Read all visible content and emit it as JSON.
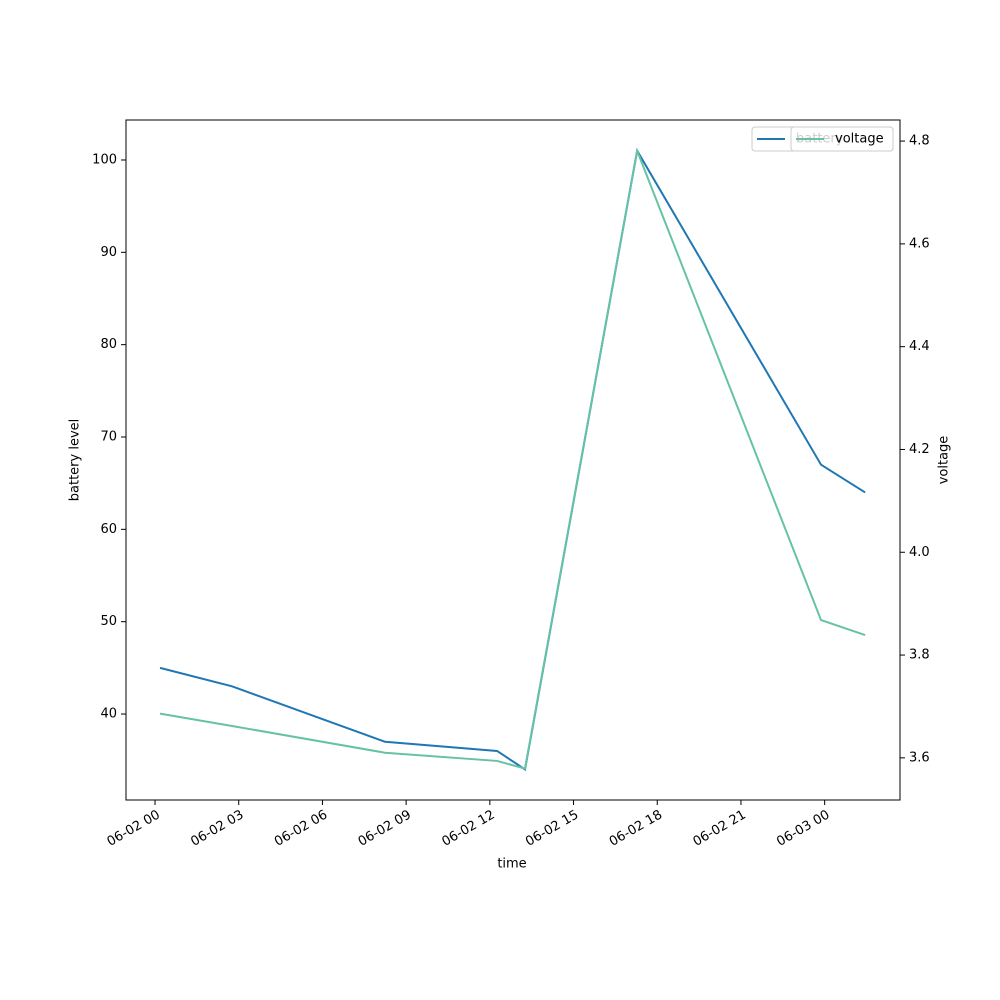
{
  "chart_data": {
    "type": "line",
    "x_label": "time",
    "y_label": "battery level",
    "y2_label": "voltage",
    "x": [
      0.18,
      2.76,
      8.24,
      12.26,
      13.26,
      17.28,
      23.87,
      25.45
    ],
    "xlim": [
      -1.04,
      26.7
    ],
    "xticks": [
      {
        "value": 0,
        "label": "06-02 00"
      },
      {
        "value": 3,
        "label": "06-02 03"
      },
      {
        "value": 6,
        "label": "06-02 06"
      },
      {
        "value": 9,
        "label": "06-02 09"
      },
      {
        "value": 12,
        "label": "06-02 12"
      },
      {
        "value": 15,
        "label": "06-02 15"
      },
      {
        "value": 18,
        "label": "06-02 18"
      },
      {
        "value": 21,
        "label": "06-02 21"
      },
      {
        "value": 24,
        "label": "06-03 00"
      }
    ],
    "ylim": [
      30.69,
      104.33
    ],
    "yticks": [
      40,
      50,
      60,
      70,
      80,
      90,
      100
    ],
    "y2lim": [
      3.518,
      4.841
    ],
    "y2ticks": [
      3.6,
      3.8,
      {
        "value": 4,
        "label": "4.0"
      },
      4.2,
      4.4,
      4.6,
      4.8
    ],
    "series": [
      {
        "name": "battery",
        "color": "#1f77b4",
        "values": [
          45,
          43,
          37,
          36,
          34,
          101,
          67,
          64
        ]
      },
      {
        "name": "voltage",
        "color": "#66c2a5",
        "axis": "y2",
        "values": [
          3.686,
          3.662,
          3.61,
          3.594,
          3.579,
          4.781,
          3.868,
          3.839
        ]
      }
    ]
  }
}
